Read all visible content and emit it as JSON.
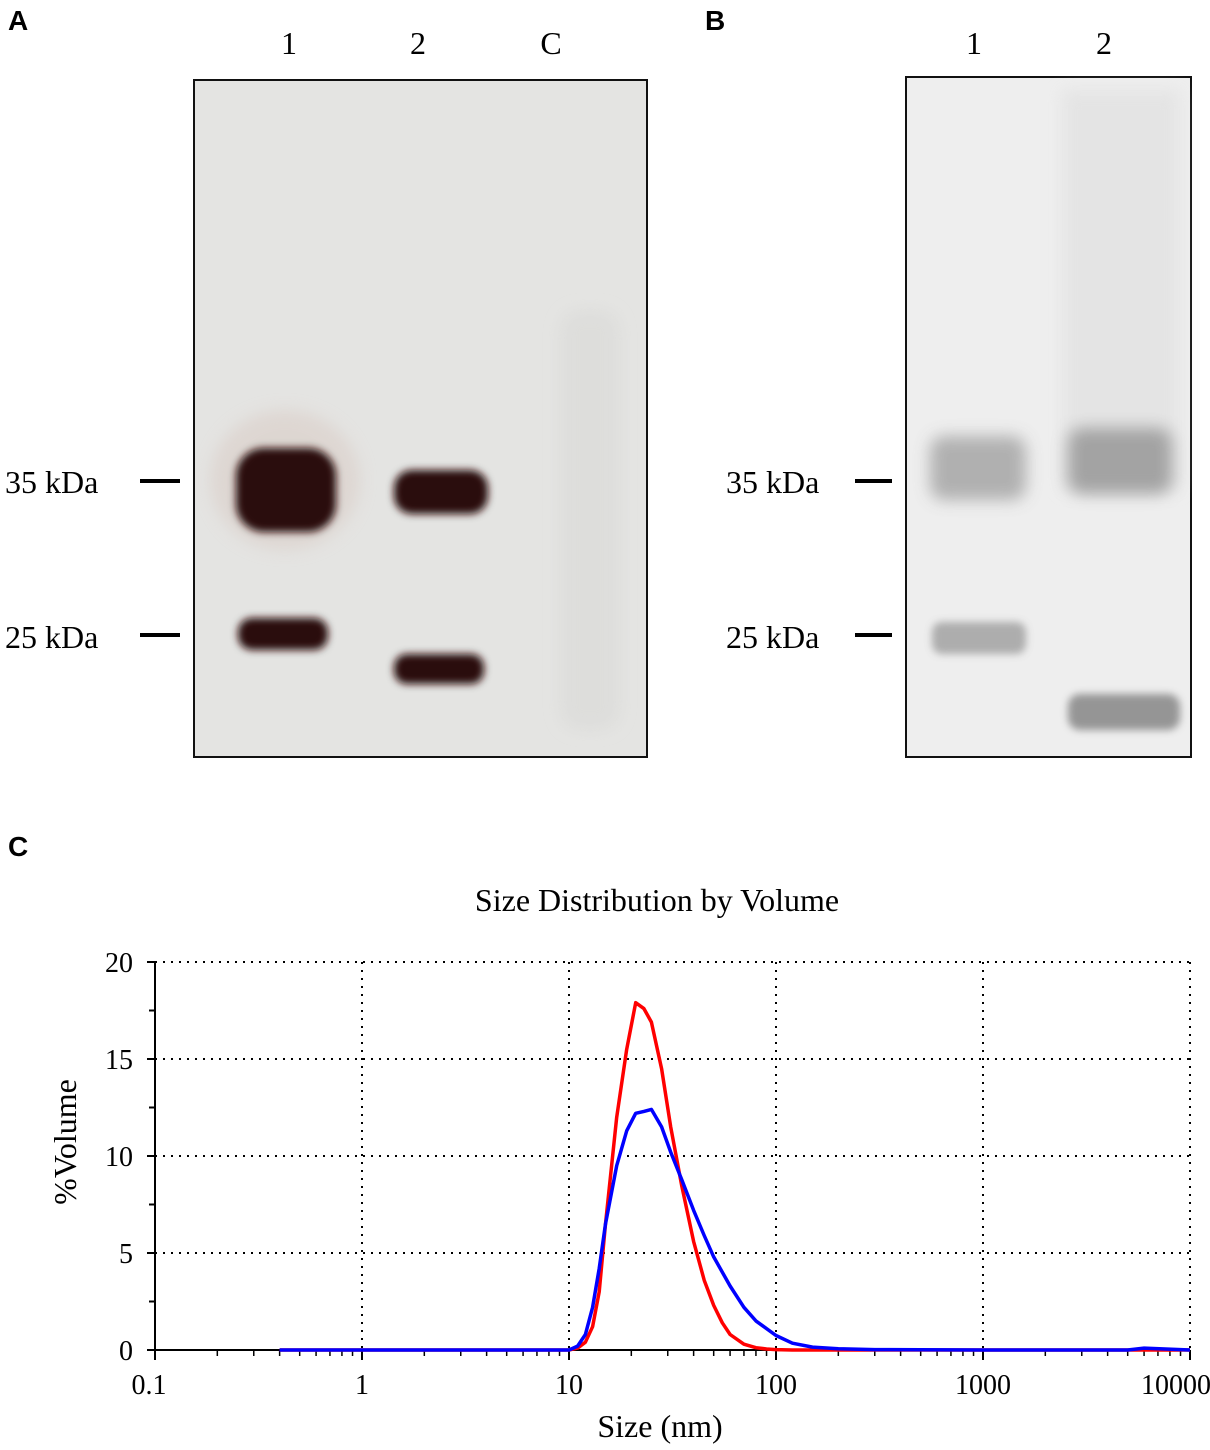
{
  "panel_a": {
    "letter": "A",
    "lane_labels": [
      "1",
      "2",
      "C"
    ],
    "markers": [
      "35 kDa",
      "25 kDa"
    ]
  },
  "panel_b": {
    "letter": "B",
    "lane_labels": [
      "1",
      "2"
    ],
    "markers": [
      "35 kDa",
      "25 kDa"
    ]
  },
  "panel_c": {
    "letter": "C"
  },
  "colors": {
    "series_red": "#ff0000",
    "series_blue": "#0000ff",
    "band_dark": "#2a0d08",
    "blot_a_bg": "#e4e4e2",
    "blot_b_bg": "#eeeeee"
  },
  "chart_data": {
    "type": "line",
    "title": "Size Distribution by Volume",
    "xlabel": "Size (nm)",
    "ylabel": "%Volume",
    "xscale": "log",
    "xlim": [
      0.1,
      10000
    ],
    "ylim": [
      0,
      20
    ],
    "xticks": [
      "0.1",
      "1",
      "10",
      "100",
      "1000",
      "10000"
    ],
    "yticks": [
      "0",
      "5",
      "10",
      "15",
      "20"
    ],
    "grid": true,
    "series": [
      {
        "color": "#ff0000",
        "x": [
          0.4,
          1,
          10,
          11,
          12,
          13,
          14,
          15,
          17,
          19,
          21,
          23,
          25,
          28,
          31,
          35,
          40,
          45,
          50,
          55,
          60,
          70,
          80,
          90,
          100,
          120,
          200,
          1000,
          10000
        ],
        "y": [
          0,
          0,
          0,
          0.1,
          0.4,
          1.2,
          3,
          6.5,
          12,
          15.5,
          17.9,
          17.6,
          16.9,
          14.5,
          11.5,
          8.5,
          5.6,
          3.6,
          2.3,
          1.4,
          0.8,
          0.3,
          0.12,
          0.05,
          0.02,
          0,
          0,
          0,
          0
        ]
      },
      {
        "color": "#0000ff",
        "x": [
          0.4,
          1,
          10,
          11,
          12,
          13,
          14,
          15,
          17,
          19,
          21,
          23,
          25,
          28,
          31,
          35,
          40,
          45,
          50,
          60,
          70,
          80,
          100,
          120,
          150,
          200,
          300,
          1000,
          5000,
          6000,
          10000
        ],
        "y": [
          0,
          0,
          0,
          0.2,
          0.8,
          2.2,
          4.2,
          6.5,
          9.5,
          11.3,
          12.2,
          12.3,
          12.4,
          11.5,
          10.2,
          8.8,
          7.2,
          5.9,
          4.8,
          3.3,
          2.2,
          1.5,
          0.75,
          0.35,
          0.15,
          0.06,
          0.02,
          0,
          0,
          0.1,
          0
        ]
      }
    ]
  }
}
